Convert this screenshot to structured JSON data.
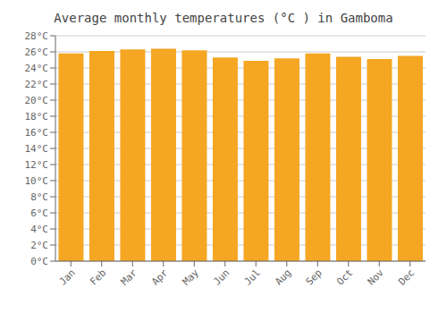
{
  "chart_data": {
    "type": "bar",
    "title": "Average monthly temperatures (°C ) in Gamboma",
    "categories": [
      "Jan",
      "Feb",
      "Mar",
      "Apr",
      "May",
      "Jun",
      "Jul",
      "Aug",
      "Sep",
      "Oct",
      "Nov",
      "Dec"
    ],
    "values": [
      25.8,
      26.1,
      26.3,
      26.4,
      26.2,
      25.3,
      24.9,
      25.2,
      25.8,
      25.4,
      25.1,
      25.5
    ],
    "color": "#F5A623",
    "ylim": [
      0,
      28
    ],
    "yticks": [
      {
        "value": 0,
        "label": "0°C"
      },
      {
        "value": 2,
        "label": "2°C"
      },
      {
        "value": 4,
        "label": "4°C"
      },
      {
        "value": 6,
        "label": "6°C"
      },
      {
        "value": 8,
        "label": "8°C"
      },
      {
        "value": 10,
        "label": "10°C"
      },
      {
        "value": 12,
        "label": "12°C"
      },
      {
        "value": 14,
        "label": "14°C"
      },
      {
        "value": 16,
        "label": "16°C"
      },
      {
        "value": 18,
        "label": "18°C"
      },
      {
        "value": 20,
        "label": "20°C"
      },
      {
        "value": 22,
        "label": "22°C"
      },
      {
        "value": 24,
        "label": "24°C"
      },
      {
        "value": 26,
        "label": "26°C"
      },
      {
        "value": 28,
        "label": "28°C"
      }
    ],
    "grid": true
  }
}
